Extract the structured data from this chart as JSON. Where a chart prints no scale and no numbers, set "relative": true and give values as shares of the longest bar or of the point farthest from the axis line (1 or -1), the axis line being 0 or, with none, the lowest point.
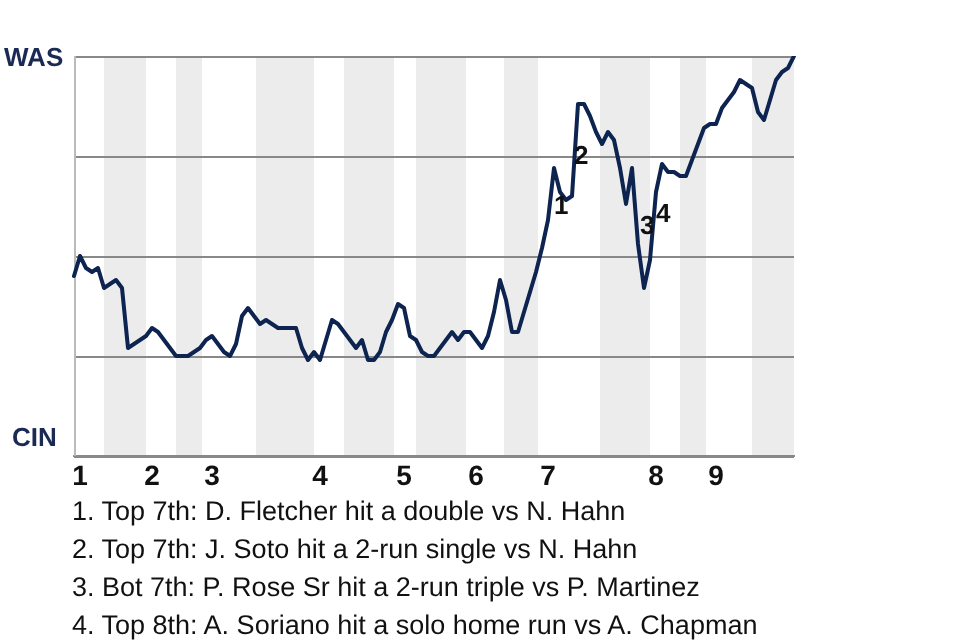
{
  "chart_data": {
    "type": "line",
    "relative": true,
    "categories": [
      null,
      "1",
      null,
      null,
      null,
      null,
      null,
      null,
      null,
      null,
      null,
      null,
      null,
      "2",
      null,
      null,
      null,
      null,
      null,
      null,
      null,
      null,
      null,
      "3",
      null,
      null,
      null,
      null,
      null,
      null,
      null,
      null,
      null,
      null,
      null,
      null,
      null,
      null,
      null,
      null,
      null,
      "4",
      null,
      null,
      null,
      null,
      null,
      null,
      null,
      null,
      null,
      null,
      null,
      null,
      null,
      "5",
      null,
      null,
      null,
      null,
      null,
      null,
      null,
      null,
      null,
      null,
      null,
      "6",
      null,
      null,
      null,
      null,
      null,
      null,
      null,
      null,
      null,
      null,
      null,
      "7",
      null,
      null,
      null,
      null,
      null,
      null,
      null,
      null,
      null,
      null,
      null,
      null,
      null,
      null,
      null,
      null,
      null,
      "8",
      null,
      null,
      null,
      null,
      null,
      null,
      null,
      null,
      null,
      "9",
      null,
      null,
      null,
      null,
      null,
      null,
      null,
      null,
      null,
      null,
      null,
      null,
      null
    ],
    "series": [
      {
        "color": "#0d2350",
        "values": [
          0.45,
          0.5,
          0.47,
          0.46,
          0.47,
          0.42,
          0.43,
          0.44,
          0.42,
          0.27,
          0.28,
          0.29,
          0.3,
          0.32,
          0.31,
          0.29,
          0.27,
          0.25,
          0.25,
          0.25,
          0.26,
          0.27,
          0.29,
          0.3,
          0.28,
          0.26,
          0.25,
          0.28,
          0.35,
          0.37,
          0.35,
          0.33,
          0.34,
          0.33,
          0.32,
          0.32,
          0.32,
          0.32,
          0.27,
          0.24,
          0.26,
          0.24,
          0.29,
          0.34,
          0.33,
          0.31,
          0.29,
          0.27,
          0.29,
          0.24,
          0.24,
          0.26,
          0.31,
          0.34,
          0.38,
          0.37,
          0.3,
          0.29,
          0.26,
          0.25,
          0.25,
          0.27,
          0.29,
          0.31,
          0.29,
          0.31,
          0.31,
          0.29,
          0.27,
          0.3,
          0.36,
          0.44,
          0.39,
          0.31,
          0.31,
          0.36,
          0.41,
          0.46,
          0.52,
          0.59,
          0.72,
          0.66,
          0.64,
          0.65,
          0.88,
          0.88,
          0.85,
          0.81,
          0.78,
          0.81,
          0.79,
          0.72,
          0.63,
          0.72,
          0.53,
          0.42,
          0.49,
          0.66,
          0.73,
          0.71,
          0.71,
          0.7,
          0.7,
          0.74,
          0.78,
          0.82,
          0.83,
          0.83,
          0.87,
          0.89,
          0.91,
          0.94,
          0.93,
          0.92,
          0.86,
          0.84,
          0.89,
          0.94,
          0.96,
          0.97,
          1
        ]
      }
    ],
    "annotations": [
      "WAS",
      "CIN",
      "1",
      "2",
      "3",
      "4",
      "1. Top 7th: D. Fletcher hit a double vs N. Hahn",
      "2. Top 7th: J. Soto hit a 2-run single vs N. Hahn",
      "3. Bot 7th: P. Rose Sr hit a 2-run triple vs P. Martinez",
      "4. Top 8th: A. Soriano hit a solo home run vs A. Chapman"
    ],
    "grid": "y",
    "legend": false,
    "marker": "none",
    "line_style": "solid"
  }
}
